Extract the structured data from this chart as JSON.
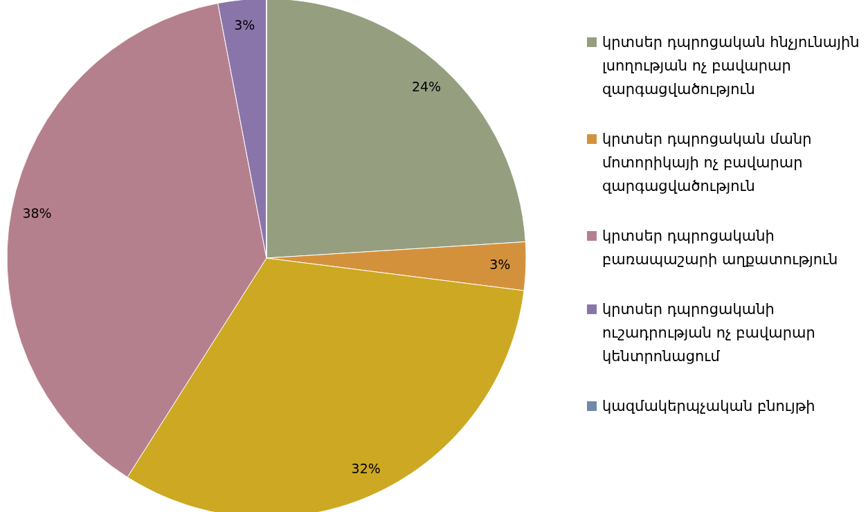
{
  "chart_data": {
    "type": "pie",
    "categories": [
      "կրտսեր դպրոցական հնչյունային լսողության ոչ բավարար զարգացվածություն",
      "կրտսեր դպրոցական մանր մոտորիկայի ոչ բավարար զարգացվածություն",
      null,
      "կրտսեր դպրոցականի բառապաշարի աղքատություն",
      "կրտսեր դպրոցականի ուշադրության ոչ բավարար կենտրոնացում",
      "կազմակերպչական բնույթի"
    ],
    "values": [
      24,
      3,
      32,
      38,
      3,
      0
    ],
    "colors": [
      "#959f80",
      "#d4913c",
      "#cda822",
      "#b5808d",
      "#8a75ab",
      "#6f8aa8"
    ],
    "value_labels": [
      "24%",
      "3%",
      "32%",
      "38%",
      "3%",
      null
    ],
    "legend": "right"
  }
}
